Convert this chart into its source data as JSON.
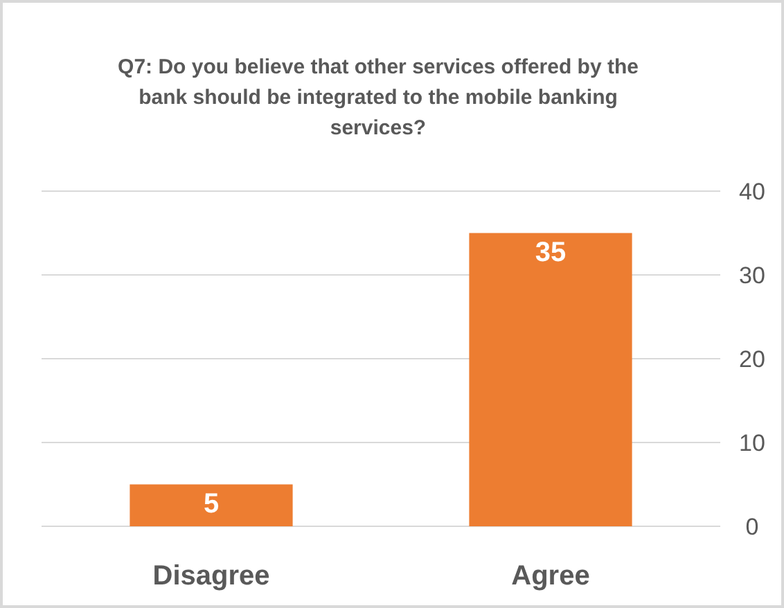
{
  "chart_data": {
    "type": "bar",
    "title": "Q7: Do you believe that other services offered by the bank should be integrated to the mobile banking services?",
    "categories": [
      "Disagree",
      "Agree"
    ],
    "values": [
      5,
      35
    ],
    "color": "#ed7d31",
    "ylim": [
      0,
      40
    ],
    "yticks": [
      0,
      10,
      20,
      30,
      40
    ],
    "grid": "y",
    "data_labels": true
  }
}
